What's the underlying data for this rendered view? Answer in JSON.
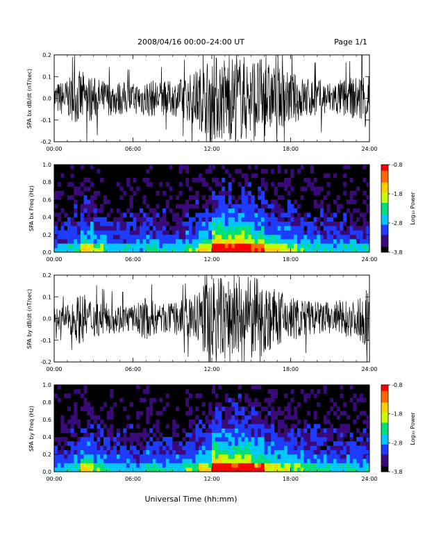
{
  "header": {
    "title": "2008/04/16  00:00–24:00 UT",
    "page": "Page 1/1"
  },
  "footer": {
    "xlabel": "Universal Time (hh:mm)"
  },
  "colors": {
    "trace": "#000000",
    "background": "#000000",
    "colormap": [
      "#000000",
      "#3a0a7a",
      "#1e3cff",
      "#00c8ff",
      "#00e07a",
      "#c8ff00",
      "#ffd000",
      "#ff6a00",
      "#ff0000"
    ]
  },
  "chart_data": [
    {
      "type": "line",
      "ylabel": "SPA bx dB/dt (nT/sec)",
      "xlim": [
        0,
        24
      ],
      "ylim": [
        -0.2,
        0.2
      ],
      "x_ticks": [
        "00:00",
        "06:00",
        "12:00",
        "18:00",
        "24:00"
      ],
      "y_ticks": [
        "-0.2",
        "-0.1",
        "0.0",
        "0.1",
        "0.2"
      ],
      "series": [
        {
          "x": [
            0,
            1,
            2,
            3,
            4,
            5,
            6,
            7,
            8,
            9,
            10,
            11,
            12,
            13,
            14,
            15,
            16,
            17,
            18,
            19,
            20,
            21,
            22,
            23,
            24
          ],
          "y_envelope": [
            0.07,
            0.09,
            0.13,
            0.1,
            0.08,
            0.08,
            0.07,
            0.09,
            0.08,
            0.08,
            0.1,
            0.14,
            0.2,
            0.2,
            0.2,
            0.2,
            0.18,
            0.14,
            0.12,
            0.1,
            0.09,
            0.08,
            0.09,
            0.1,
            0.15
          ]
        }
      ]
    },
    {
      "type": "heatmap",
      "ylabel": "SPA bx Freq (Hz)",
      "xlim": [
        0,
        24
      ],
      "ylim": [
        0.0,
        1.0
      ],
      "x_ticks": [
        "00:00",
        "06:00",
        "12:00",
        "18:00",
        "24:00"
      ],
      "y_ticks": [
        "0.0",
        "0.2",
        "0.4",
        "0.6",
        "0.8",
        "1.0"
      ],
      "colorbar": {
        "label": "Log₁₀ Power",
        "range": [
          -3.8,
          -0.8
        ],
        "ticks": [
          "-0.8",
          "-1.8",
          "-2.8",
          "-3.8"
        ]
      },
      "activity": [
        0.25,
        0.35,
        0.55,
        0.4,
        0.3,
        0.3,
        0.28,
        0.35,
        0.3,
        0.3,
        0.38,
        0.55,
        0.95,
        0.85,
        0.9,
        0.75,
        0.55,
        0.5,
        0.4,
        0.35,
        0.32,
        0.3,
        0.32,
        0.3
      ]
    },
    {
      "type": "line",
      "ylabel": "SPA by dB/dt (nT/sec)",
      "xlim": [
        0,
        24
      ],
      "ylim": [
        -0.2,
        0.2
      ],
      "x_ticks": [
        "00:00",
        "06:00",
        "12:00",
        "18:00",
        "24:00"
      ],
      "y_ticks": [
        "-0.2",
        "-0.1",
        "0.0",
        "0.1",
        "0.2"
      ],
      "series": [
        {
          "x": [
            0,
            1,
            2,
            3,
            4,
            5,
            6,
            7,
            8,
            9,
            10,
            11,
            12,
            13,
            14,
            15,
            16,
            17,
            18,
            19,
            20,
            21,
            22,
            23,
            24
          ],
          "y_envelope": [
            0.05,
            0.06,
            0.12,
            0.09,
            0.07,
            0.07,
            0.06,
            0.1,
            0.07,
            0.07,
            0.09,
            0.13,
            0.2,
            0.2,
            0.2,
            0.2,
            0.17,
            0.13,
            0.11,
            0.09,
            0.08,
            0.08,
            0.09,
            0.08,
            0.16
          ]
        }
      ]
    },
    {
      "type": "heatmap",
      "ylabel": "SPA by Freq (Hz)",
      "xlim": [
        0,
        24
      ],
      "ylim": [
        0.0,
        1.0
      ],
      "x_ticks": [
        "00:00",
        "06:00",
        "12:00",
        "18:00",
        "24:00"
      ],
      "y_ticks": [
        "0.0",
        "0.2",
        "0.4",
        "0.6",
        "0.8",
        "1.0"
      ],
      "colorbar": {
        "label": "Log₁₀ Power",
        "range": [
          -3.8,
          -0.8
        ],
        "ticks": [
          "-0.8",
          "-1.8",
          "-2.8",
          "-3.8"
        ]
      },
      "activity": [
        0.25,
        0.35,
        0.55,
        0.4,
        0.3,
        0.3,
        0.28,
        0.38,
        0.3,
        0.32,
        0.4,
        0.55,
        0.95,
        0.85,
        0.9,
        0.75,
        0.55,
        0.5,
        0.45,
        0.4,
        0.35,
        0.32,
        0.35,
        0.3
      ]
    }
  ]
}
